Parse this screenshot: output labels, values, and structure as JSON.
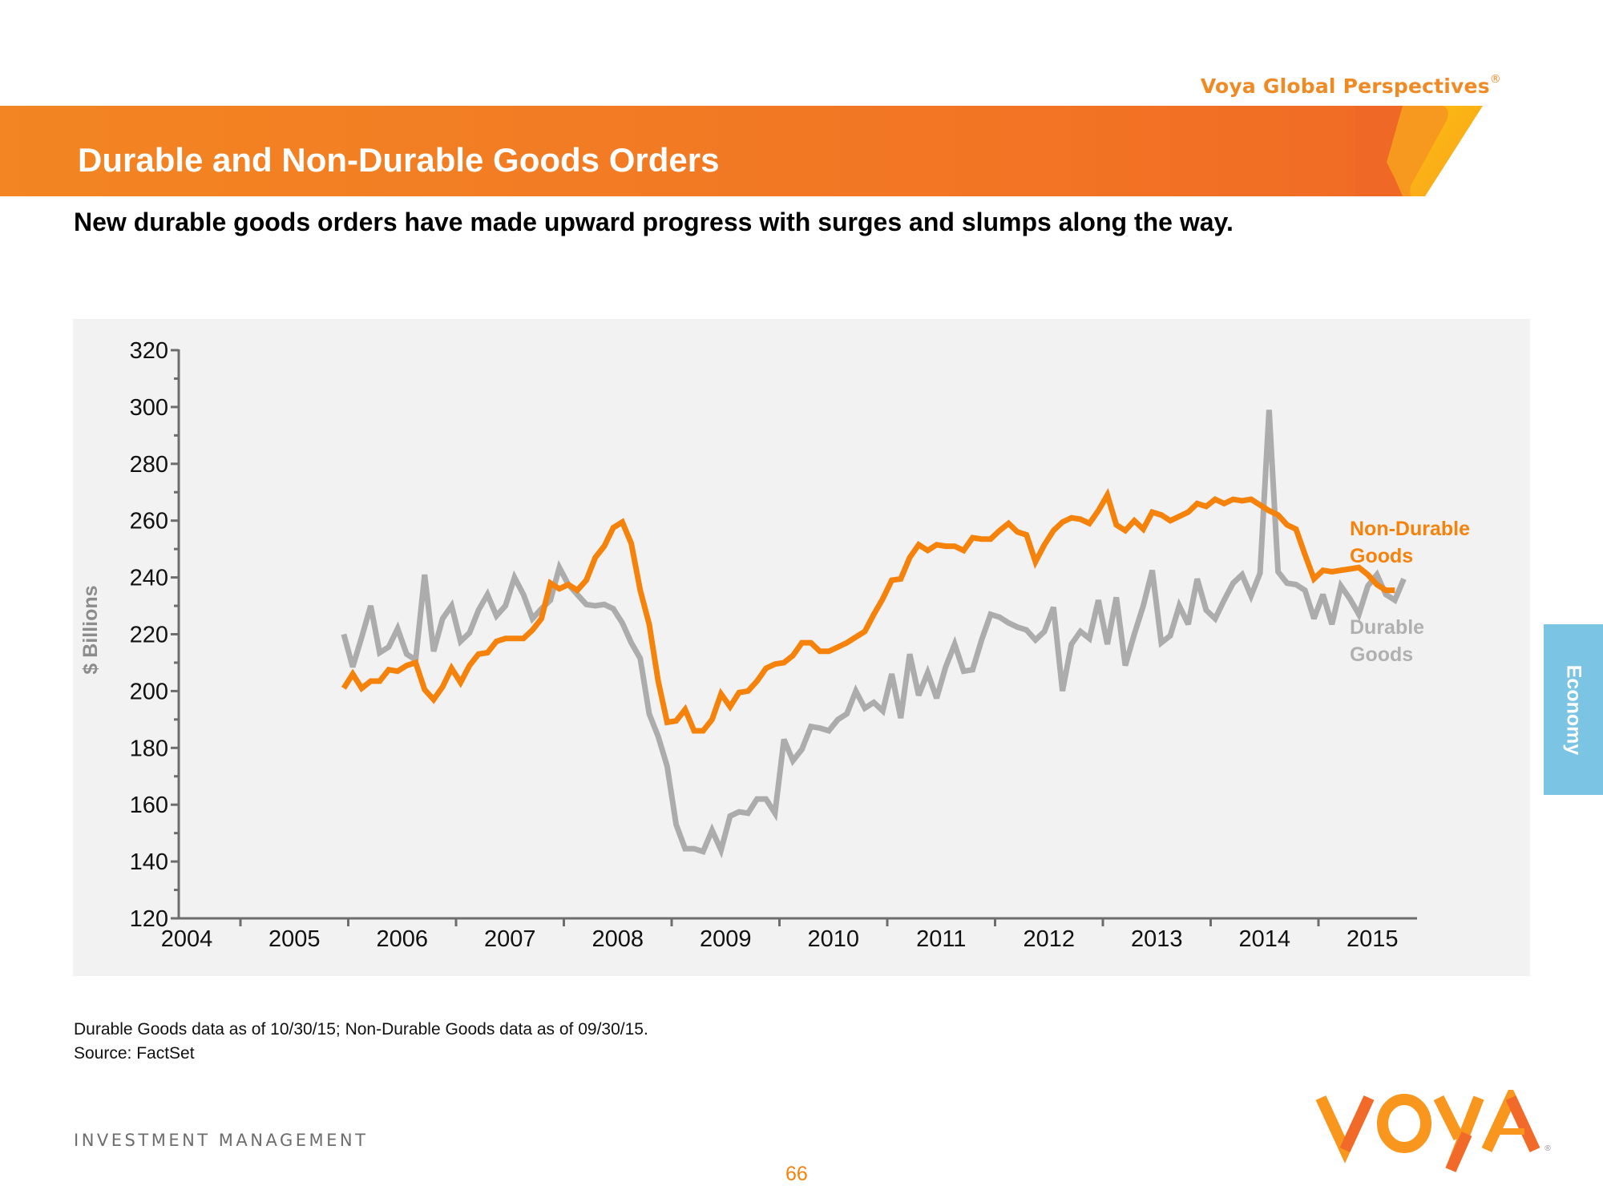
{
  "header": {
    "brand_top": "Voya Global Perspectives",
    "brand_mark": "®",
    "title": "Durable and Non-Durable Goods Orders",
    "subtitle": "New durable goods orders have made upward progress with surges and slumps along the way."
  },
  "side_tab": {
    "label": "Economy"
  },
  "footer": {
    "note_line1": "Durable Goods data as of 10/30/15; Non-Durable Goods data as of 09/30/15.",
    "note_line2": "Source: FactSet",
    "division": "INVESTMENT MANAGEMENT",
    "page_number": "66",
    "logo_text": "VOYA"
  },
  "colors": {
    "brand_orange": "#f5820b",
    "durable_gray": "#acacac",
    "tab_blue": "#7cc4e4",
    "panel_bg": "#f2f2f2"
  },
  "chart_data": {
    "type": "line",
    "title": "",
    "xlabel": "",
    "ylabel": "$ Billions",
    "ylim": [
      120,
      320
    ],
    "yticks": [
      120,
      140,
      160,
      180,
      200,
      220,
      240,
      260,
      280,
      300,
      320
    ],
    "xlim": [
      "2004",
      "2015"
    ],
    "xtick_labels": [
      "2004",
      "2005",
      "2006",
      "2007",
      "2008",
      "2009",
      "2010",
      "2011",
      "2012",
      "2013",
      "2014",
      "2015"
    ],
    "grid": false,
    "frequency": "monthly",
    "legend": "inline-right",
    "series": [
      {
        "name": "Non-Durable Goods",
        "label_lines": [
          "Non-Durable",
          "Goods"
        ],
        "color": "#f5820b",
        "start": "2005-12",
        "end": "2015-09",
        "values": [
          201,
          206,
          201,
          203.5,
          203.5,
          207.5,
          207,
          209,
          210,
          200.5,
          197,
          201.5,
          208,
          203,
          209,
          213,
          213.5,
          217.5,
          218.5,
          218.5,
          218.5,
          221.5,
          225.5,
          238,
          236,
          237.5,
          235.5,
          239,
          247,
          251,
          257.5,
          259.5,
          252,
          235.5,
          223.5,
          203.5,
          189,
          189.5,
          193.5,
          186,
          186,
          190,
          199,
          194.5,
          199.5,
          200,
          203.5,
          208,
          209.5,
          210,
          212.5,
          217,
          217,
          214,
          214,
          215.5,
          217,
          219,
          221,
          227,
          232.5,
          239,
          239.5,
          247,
          251.5,
          249.5,
          251.5,
          251,
          251,
          249.5,
          254,
          253.5,
          253.5,
          256.5,
          259,
          256,
          255,
          245.5,
          251.5,
          256.5,
          259.5,
          261,
          260.5,
          259,
          263.5,
          269,
          258.5,
          256.5,
          260,
          257,
          263,
          262,
          260,
          261.5,
          263,
          266,
          265,
          267.5,
          266,
          267.5,
          267,
          267.5,
          265.5,
          263.5,
          262,
          258.5,
          257,
          248,
          239.5,
          242.5,
          242,
          242.5,
          243,
          243.5,
          241,
          237.5,
          235.5,
          235.5
        ]
      },
      {
        "name": "Durable Goods",
        "label_lines": [
          "Durable",
          "Goods"
        ],
        "color": "#acacac",
        "start": "2005-12",
        "end": "2015-10",
        "values": [
          220,
          208.5,
          219,
          230,
          213.5,
          215.5,
          222,
          213,
          211,
          241,
          214,
          225.5,
          230,
          217.5,
          220.5,
          228.5,
          234,
          226.5,
          230,
          240,
          234,
          225.5,
          229,
          232,
          243.5,
          237.5,
          234,
          230.5,
          230,
          230.5,
          229,
          224,
          217,
          211.5,
          192,
          184,
          173.5,
          153,
          144.5,
          144.5,
          143.5,
          151,
          144,
          156,
          157.5,
          157,
          162,
          162,
          157,
          183,
          175.5,
          179.5,
          187.5,
          187,
          186,
          190,
          192,
          200,
          194,
          196,
          193,
          206,
          190.5,
          213,
          198.5,
          206.5,
          197.5,
          208.5,
          216.5,
          207,
          207.5,
          218,
          227,
          226,
          224,
          222.5,
          221.5,
          218,
          221,
          229.5,
          200,
          216.5,
          221,
          218.5,
          232,
          216.5,
          233,
          209,
          220,
          230,
          242.5,
          217,
          219.5,
          230,
          223.5,
          239.5,
          228.5,
          225.5,
          232,
          238,
          241,
          233.5,
          241.5,
          299,
          242,
          238,
          237.5,
          235.5,
          225.5,
          234,
          223.5,
          237,
          232.5,
          227,
          237,
          241,
          234,
          232,
          239.5
        ]
      }
    ]
  }
}
